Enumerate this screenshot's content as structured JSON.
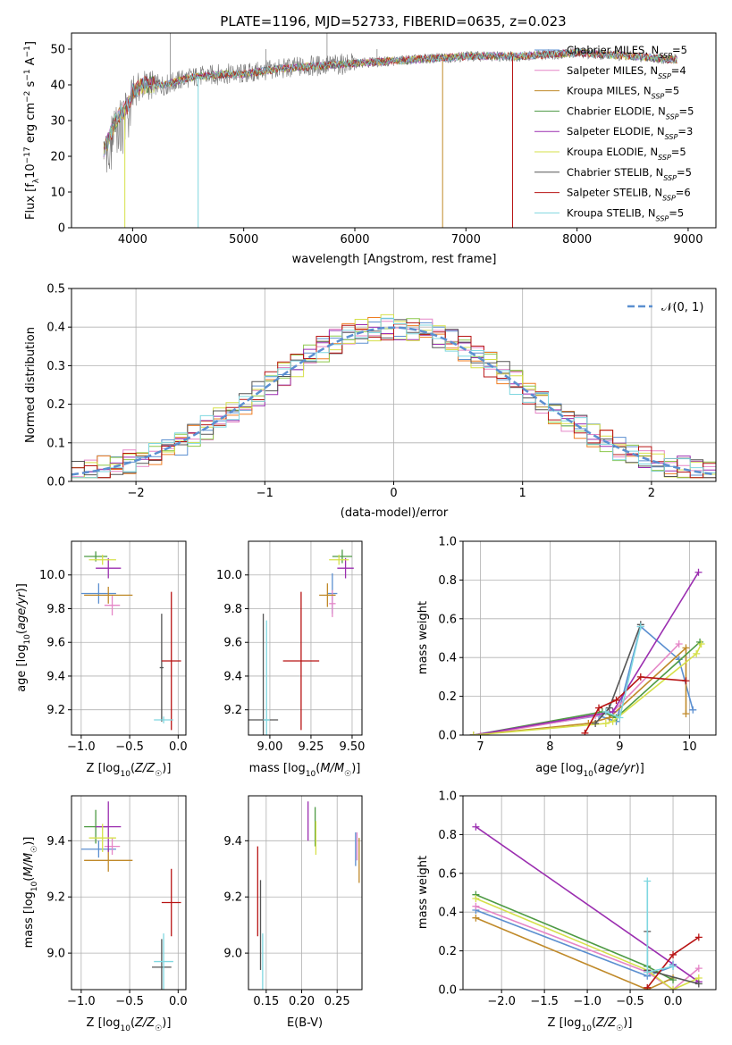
{
  "figure": {
    "title": "PLATE=1196, MJD=52733, FIBERID=0635, z=0.023",
    "palette": {
      "Chabrier MILES": "#5b8fd0",
      "Salpeter MILES": "#e586c7",
      "Kroupa MILES": "#c08a2a",
      "Chabrier ELODIE": "#4e9a44",
      "Salpeter ELODIE": "#9b2eb0",
      "Kroupa ELODIE": "#d6e04a",
      "Chabrier STELIB": "#555555",
      "Salpeter STELIB": "#b81414",
      "Kroupa STELIB": "#7fd7e0"
    },
    "hist_colors": [
      "#5b8fd0",
      "#e586c7",
      "#ef7d22",
      "#8cc84b",
      "#9b2eb0",
      "#d6e04a",
      "#555555",
      "#b81414",
      "#7fd7e0"
    ]
  },
  "chart_data": [
    {
      "id": "spectrum",
      "type": "line",
      "xlabel": "wavelength [Angstrom, rest frame]",
      "ylabel": "Flux [f",
      "xlim": [
        3450,
        9250
      ],
      "ylim": [
        0,
        54.5
      ],
      "xticks": [
        4000,
        5000,
        6000,
        7000,
        8000,
        9000
      ],
      "yticks": [
        0,
        10,
        20,
        30,
        40,
        50
      ],
      "continuum_x": [
        3750,
        3850,
        3950,
        4000,
        4100,
        4300,
        4500,
        4800,
        5000,
        5200,
        5500,
        6000,
        6500,
        7000,
        7500,
        8000,
        8500,
        8900
      ],
      "continuum_y": [
        22,
        30,
        34,
        38,
        40,
        40,
        42,
        43,
        43,
        44,
        45,
        46,
        47,
        48,
        48,
        49,
        48,
        47
      ],
      "legend": [
        {
          "name": "Chabrier MILES",
          "label": "Chabrier MILES, N",
          "sub": "SSP",
          "n": "=5"
        },
        {
          "name": "Salpeter MILES",
          "label": "Salpeter MILES, N",
          "sub": "SSP",
          "n": "=4"
        },
        {
          "name": "Kroupa MILES",
          "label": "Kroupa MILES, N",
          "sub": "SSP",
          "n": "=5"
        },
        {
          "name": "Chabrier ELODIE",
          "label": "Chabrier ELODIE, N",
          "sub": "SSP",
          "n": "=5"
        },
        {
          "name": "Salpeter ELODIE",
          "label": "Salpeter ELODIE, N",
          "sub": "SSP",
          "n": "=3"
        },
        {
          "name": "Kroupa ELODIE",
          "label": "Kroupa ELODIE, N",
          "sub": "SSP",
          "n": "=5"
        },
        {
          "name": "Chabrier STELIB",
          "label": "Chabrier STELIB, N",
          "sub": "SSP",
          "n": "=5"
        },
        {
          "name": "Salpeter STELIB",
          "label": "Salpeter STELIB, N",
          "sub": "SSP",
          "n": "=6"
        },
        {
          "name": "Kroupa STELIB",
          "label": "Kroupa STELIB, N",
          "sub": "SSP",
          "n": "=5"
        }
      ],
      "drop_lines": [
        {
          "x": 3930,
          "color": "#d6e04a"
        },
        {
          "x": 4590,
          "color": "#7fd7e0"
        },
        {
          "x": 6790,
          "color": "#c08a2a"
        },
        {
          "x": 7420,
          "color": "#b81414"
        }
      ],
      "spikes": [
        {
          "x": 4340,
          "y": 54.5
        },
        {
          "x": 5750,
          "y": 54.5
        },
        {
          "x": 5200,
          "y": 50
        },
        {
          "x": 6200,
          "y": 50
        }
      ]
    },
    {
      "id": "residual-hist",
      "type": "bar",
      "xlabel": "(data-model)/error",
      "ylabel": "Normed distribution",
      "xlim": [
        -2.5,
        2.5
      ],
      "ylim": [
        0,
        0.5
      ],
      "xticks": [
        -2,
        -1,
        0,
        1,
        2
      ],
      "yticks": [
        0.0,
        0.1,
        0.2,
        0.3,
        0.4,
        0.5
      ],
      "grid": true,
      "bin_width": 0.1,
      "legend": "𝒩(0, 1)",
      "gaussian_color": "#5b8fd0"
    },
    {
      "id": "age-z",
      "type": "scatter",
      "xlabel": "Z [log₁₀(Z/Z☉)]",
      "ylabel": "age  [log₁₀(age/yr)]",
      "xlim": [
        -1.1,
        0.08
      ],
      "ylim": [
        9.05,
        10.2
      ],
      "xticks": [
        -1.0,
        -0.5,
        0.0
      ],
      "yticks": [
        9.2,
        9.4,
        9.6,
        9.8,
        10.0
      ],
      "grid": true,
      "points": [
        {
          "name": "Chabrier MILES",
          "x": -0.82,
          "y": 9.89,
          "xerr": 0.18,
          "yerr": 0.06
        },
        {
          "name": "Salpeter MILES",
          "x": -0.68,
          "y": 9.82,
          "xerr": 0.08,
          "yerr": 0.06
        },
        {
          "name": "Kroupa MILES",
          "x": -0.72,
          "y": 9.88,
          "xerr": 0.25,
          "yerr": 0.05
        },
        {
          "name": "Chabrier ELODIE",
          "x": -0.85,
          "y": 10.11,
          "xerr": 0.12,
          "yerr": 0.03
        },
        {
          "name": "Salpeter ELODIE",
          "x": -0.72,
          "y": 10.04,
          "xerr": 0.13,
          "yerr": 0.06
        },
        {
          "name": "Kroupa ELODIE",
          "x": -0.78,
          "y": 10.09,
          "xerr": 0.14,
          "yerr": 0.03
        },
        {
          "name": "Chabrier STELIB",
          "x": -0.17,
          "y": 9.45,
          "xerr": 0.02,
          "yerr": 0.32
        },
        {
          "name": "Salpeter STELIB",
          "x": -0.07,
          "y": 9.49,
          "xerr": 0.1,
          "yerr": 0.41
        },
        {
          "name": "Kroupa STELIB",
          "x": -0.15,
          "y": 9.14,
          "xerr": 0.1,
          "yerr": 0.02
        }
      ]
    },
    {
      "id": "age-mass",
      "type": "scatter",
      "xlabel": "mass [log₁₀(M/M☉)]",
      "xlim": [
        8.87,
        9.56
      ],
      "ylim": [
        9.05,
        10.2
      ],
      "xticks": [
        9.0,
        9.25,
        9.5
      ],
      "yticks": [
        9.2,
        9.4,
        9.6,
        9.8,
        10.0
      ],
      "grid": true,
      "points": [
        {
          "name": "Chabrier MILES",
          "x": 9.38,
          "y": 9.89,
          "xerr": 0.03,
          "yerr": 0.12
        },
        {
          "name": "Salpeter MILES",
          "x": 9.38,
          "y": 9.83,
          "xerr": 0.02,
          "yerr": 0.08
        },
        {
          "name": "Kroupa MILES",
          "x": 9.35,
          "y": 9.88,
          "xerr": 0.05,
          "yerr": 0.07
        },
        {
          "name": "Chabrier ELODIE",
          "x": 9.44,
          "y": 10.11,
          "xerr": 0.06,
          "yerr": 0.04
        },
        {
          "name": "Salpeter ELODIE",
          "x": 9.46,
          "y": 10.04,
          "xerr": 0.05,
          "yerr": 0.06
        },
        {
          "name": "Kroupa ELODIE",
          "x": 9.42,
          "y": 10.09,
          "xerr": 0.06,
          "yerr": 0.03
        },
        {
          "name": "Chabrier STELIB",
          "x": 8.96,
          "y": 9.14,
          "xerr": 0.09,
          "yerr": 0.63
        },
        {
          "name": "Salpeter STELIB",
          "x": 9.19,
          "y": 9.49,
          "xerr": 0.11,
          "yerr": 0.41
        },
        {
          "name": "Kroupa STELIB",
          "x": 8.98,
          "y": 9.14,
          "xerr": 0.02,
          "yerr": 0.59
        }
      ]
    },
    {
      "id": "weight-age",
      "type": "line",
      "xlabel": "age  [log₁₀(age/yr)]",
      "ylabel": "mass weight",
      "xlim": [
        6.75,
        10.38
      ],
      "ylim": [
        0,
        1
      ],
      "xticks": [
        7,
        8,
        9,
        10
      ],
      "yticks": [
        0.0,
        0.2,
        0.4,
        0.6,
        0.8,
        1.0
      ],
      "grid": true,
      "series": [
        {
          "name": "Chabrier MILES",
          "x": [
            6.9,
            8.7,
            8.95,
            9.3,
            9.85,
            10.05
          ],
          "y": [
            0.0,
            0.1,
            0.07,
            0.56,
            0.39,
            0.13
          ]
        },
        {
          "name": "Salpeter MILES",
          "x": [
            7.0,
            8.65,
            8.9,
            9.85
          ],
          "y": [
            0.0,
            0.1,
            0.12,
            0.47
          ]
        },
        {
          "name": "Kroupa MILES",
          "x": [
            6.9,
            8.55,
            8.85,
            9.95,
            9.95
          ],
          "y": [
            0.0,
            0.06,
            0.09,
            0.45,
            0.11
          ]
        },
        {
          "name": "Chabrier ELODIE",
          "x": [
            6.9,
            8.75,
            8.95,
            10.15
          ],
          "y": [
            0.0,
            0.12,
            0.09,
            0.48
          ]
        },
        {
          "name": "Salpeter ELODIE",
          "x": [
            6.9,
            8.9,
            10.13
          ],
          "y": [
            0.0,
            0.12,
            0.84
          ]
        },
        {
          "name": "Kroupa ELODIE",
          "x": [
            6.9,
            8.8,
            8.9,
            10.1,
            10.17
          ],
          "y": [
            0.0,
            0.06,
            0.07,
            0.42,
            0.47
          ]
        },
        {
          "name": "Chabrier STELIB",
          "x": [
            8.65,
            8.85,
            9.3
          ],
          "y": [
            0.06,
            0.14,
            0.57
          ]
        },
        {
          "name": "Salpeter STELIB",
          "x": [
            8.5,
            8.7,
            8.95,
            9.3,
            9.95
          ],
          "y": [
            0.01,
            0.14,
            0.18,
            0.3,
            0.28
          ]
        },
        {
          "name": "Kroupa STELIB",
          "x": [
            8.8,
            9.0,
            9.3
          ],
          "y": [
            0.12,
            0.09,
            0.56
          ]
        }
      ]
    },
    {
      "id": "mass-z",
      "type": "scatter",
      "xlabel": "Z [log₁₀(Z/Z☉)]",
      "ylabel": "mass [log₁₀(M/M☉)]",
      "xlim": [
        -1.1,
        0.08
      ],
      "ylim": [
        8.87,
        9.56
      ],
      "xticks": [
        -1.0,
        -0.5,
        0.0
      ],
      "yticks": [
        9.0,
        9.2,
        9.4
      ],
      "grid": true,
      "points": [
        {
          "name": "Chabrier MILES",
          "x": -0.82,
          "y": 9.37,
          "xerr": 0.18,
          "yerr": 0.03
        },
        {
          "name": "Salpeter MILES",
          "x": -0.68,
          "y": 9.38,
          "xerr": 0.08,
          "yerr": 0.03
        },
        {
          "name": "Kroupa MILES",
          "x": -0.72,
          "y": 9.33,
          "xerr": 0.25,
          "yerr": 0.04
        },
        {
          "name": "Chabrier ELODIE",
          "x": -0.85,
          "y": 9.45,
          "xerr": 0.12,
          "yerr": 0.06
        },
        {
          "name": "Salpeter ELODIE",
          "x": -0.72,
          "y": 9.45,
          "xerr": 0.13,
          "yerr": 0.09
        },
        {
          "name": "Kroupa ELODIE",
          "x": -0.78,
          "y": 9.41,
          "xerr": 0.14,
          "yerr": 0.05
        },
        {
          "name": "Chabrier STELIB",
          "x": -0.17,
          "y": 8.95,
          "xerr": 0.1,
          "yerr": 0.1
        },
        {
          "name": "Salpeter STELIB",
          "x": -0.07,
          "y": 9.18,
          "xerr": 0.1,
          "yerr": 0.12
        },
        {
          "name": "Kroupa STELIB",
          "x": -0.15,
          "y": 8.97,
          "xerr": 0.1,
          "yerr": 0.1
        }
      ]
    },
    {
      "id": "mass-ebv",
      "type": "scatter",
      "xlabel": "E(B-V)",
      "xlim": [
        0.125,
        0.285
      ],
      "ylim": [
        8.87,
        9.56
      ],
      "xticks": [
        0.15,
        0.2,
        0.25
      ],
      "yticks": [
        9.0,
        9.2,
        9.4
      ],
      "grid": true,
      "points": [
        {
          "name": "Chabrier MILES",
          "x": 0.276,
          "y": 9.37,
          "yerr": 0.06
        },
        {
          "name": "Salpeter MILES",
          "x": 0.278,
          "y": 9.38,
          "yerr": 0.05
        },
        {
          "name": "Kroupa MILES",
          "x": 0.281,
          "y": 9.33,
          "yerr": 0.08
        },
        {
          "name": "Chabrier ELODIE",
          "x": 0.219,
          "y": 9.45,
          "yerr": 0.07
        },
        {
          "name": "Salpeter ELODIE",
          "x": 0.209,
          "y": 9.47,
          "yerr": 0.07
        },
        {
          "name": "Kroupa ELODIE",
          "x": 0.22,
          "y": 9.41,
          "yerr": 0.06
        },
        {
          "name": "Chabrier STELIB",
          "x": 0.142,
          "y": 9.1,
          "yerr": 0.16
        },
        {
          "name": "Salpeter STELIB",
          "x": 0.138,
          "y": 9.22,
          "yerr": 0.16
        },
        {
          "name": "Kroupa STELIB",
          "x": 0.145,
          "y": 8.97,
          "yerr": 0.1
        }
      ]
    },
    {
      "id": "weight-z",
      "type": "line",
      "xlabel": "Z [log₁₀(Z/Z☉)]",
      "ylabel": "mass weight",
      "xlim": [
        -2.45,
        0.5
      ],
      "ylim": [
        0,
        1
      ],
      "xticks": [
        -2.0,
        -1.5,
        -1.0,
        -0.5,
        0.0
      ],
      "yticks": [
        0.0,
        0.2,
        0.4,
        0.6,
        0.8,
        1.0
      ],
      "grid": true,
      "series": [
        {
          "name": "Chabrier MILES",
          "x": [
            -2.3,
            -0.3,
            0.0,
            0.0
          ],
          "y": [
            0.41,
            0.07,
            0.12,
            0.13
          ]
        },
        {
          "name": "Salpeter MILES",
          "x": [
            -2.3,
            -0.3,
            0.0,
            0.3
          ],
          "y": [
            0.43,
            0.09,
            0.0,
            0.11
          ]
        },
        {
          "name": "Kroupa MILES",
          "x": [
            -2.3,
            -0.3,
            0.0
          ],
          "y": [
            0.37,
            0.0,
            0.06
          ]
        },
        {
          "name": "Chabrier ELODIE",
          "x": [
            -2.3,
            -0.3,
            0.0
          ],
          "y": [
            0.49,
            0.12,
            0.05
          ]
        },
        {
          "name": "Salpeter ELODIE",
          "x": [
            -2.3,
            0.3
          ],
          "y": [
            0.84,
            0.04
          ]
        },
        {
          "name": "Kroupa ELODIE",
          "x": [
            -2.3,
            -0.3,
            0.0,
            0.3
          ],
          "y": [
            0.47,
            0.1,
            0.0,
            0.06
          ]
        },
        {
          "name": "Chabrier STELIB",
          "x": [
            -0.3,
            -0.3,
            0.3
          ],
          "y": [
            0.3,
            0.1,
            0.03
          ]
        },
        {
          "name": "Salpeter STELIB",
          "x": [
            -0.3,
            0.0,
            0.3
          ],
          "y": [
            0.01,
            0.18,
            0.27
          ]
        },
        {
          "name": "Kroupa STELIB",
          "x": [
            -0.3,
            -0.3,
            0.0
          ],
          "y": [
            0.56,
            0.09,
            0.12
          ]
        }
      ]
    }
  ]
}
